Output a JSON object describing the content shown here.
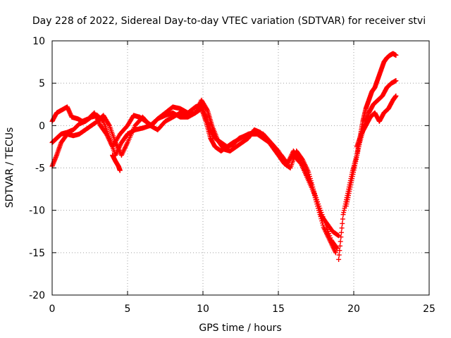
{
  "chart_data": {
    "type": "scatter",
    "title": "Day 228 of 2022, Sidereal Day-to-day VTEC variation (SDTVAR) for receiver stvi",
    "xlabel": "GPS time / hours",
    "ylabel": "SDTVAR / TECUs",
    "xlim": [
      0,
      25
    ],
    "ylim": [
      -20,
      10
    ],
    "xticks": [
      0,
      5,
      10,
      15,
      20,
      25
    ],
    "yticks": [
      -20,
      -15,
      -10,
      -5,
      0,
      5,
      10
    ],
    "xtick_labels": [
      "0",
      "5",
      "10",
      "15",
      "20",
      "25"
    ],
    "ytick_labels": [
      "-20",
      "-15",
      "-10",
      "-5",
      "0",
      "5",
      "10"
    ],
    "grid": true,
    "marker": "plus",
    "color": "#ff0000",
    "series": [
      {
        "x": [
          0.0,
          0.3,
          0.6,
          1.0,
          1.3,
          1.7,
          2.0,
          2.4,
          2.8,
          3.2,
          3.6,
          4.0,
          4.5,
          5.0,
          5.4,
          5.8,
          6.2,
          6.6,
          7.0,
          7.5,
          8.0,
          8.5,
          9.0,
          9.5,
          9.9,
          10.2,
          10.5,
          10.8,
          11.2,
          11.6,
          12.0,
          12.4,
          12.8,
          13.2,
          13.6,
          14.0,
          14.4,
          14.8,
          15.2,
          15.6,
          16.0,
          16.4,
          16.8,
          17.2,
          17.6,
          18.0,
          18.4,
          18.8
        ],
        "y": [
          0.5,
          1.5,
          1.8,
          2.2,
          1.0,
          0.8,
          0.5,
          0.8,
          1.5,
          0.0,
          -1.0,
          -2.5,
          -1.0,
          0.0,
          1.2,
          1.0,
          0.5,
          0.0,
          0.8,
          1.5,
          2.2,
          2.0,
          1.5,
          2.2,
          2.5,
          1.0,
          -0.5,
          -1.5,
          -2.0,
          -2.5,
          -2.2,
          -1.5,
          -1.2,
          -1.0,
          -1.0,
          -1.5,
          -2.0,
          -3.0,
          -3.5,
          -4.5,
          -3.0,
          -4.0,
          -5.5,
          -7.0,
          -9.5,
          -12.0,
          -13.5,
          -15.0
        ]
      },
      {
        "x": [
          0.0,
          0.3,
          0.6,
          1.0,
          1.4,
          1.8,
          2.2,
          2.6,
          3.0,
          3.4,
          3.8,
          4.2,
          4.6,
          5.0,
          5.5,
          6.0,
          6.5,
          7.0,
          7.5,
          8.0,
          8.5,
          9.0,
          9.5,
          9.9,
          10.2,
          10.5,
          10.8,
          11.2,
          11.6,
          12.0,
          12.5,
          13.0,
          13.5,
          14.0,
          14.5,
          15.0,
          15.5,
          16.0,
          16.5,
          17.0,
          17.5,
          18.0,
          18.5,
          18.9
        ],
        "y": [
          -2.0,
          -1.5,
          -1.0,
          -0.8,
          -0.5,
          0.2,
          0.5,
          1.0,
          1.2,
          0.5,
          -1.5,
          -3.5,
          -2.0,
          -1.0,
          -0.5,
          -0.3,
          0.0,
          0.8,
          1.2,
          1.5,
          1.0,
          1.0,
          1.5,
          2.0,
          0.5,
          -1.5,
          -2.5,
          -3.0,
          -2.5,
          -2.0,
          -1.5,
          -1.0,
          -0.8,
          -1.0,
          -2.0,
          -3.0,
          -4.5,
          -3.5,
          -4.5,
          -6.5,
          -8.5,
          -11.0,
          -13.5,
          -14.5
        ]
      },
      {
        "x": [
          0.0,
          0.3,
          0.6,
          1.0,
          1.4,
          1.8,
          2.2,
          2.6,
          3.0,
          3.4,
          3.8,
          4.2,
          4.6,
          5.0,
          5.5,
          6.0,
          6.5,
          7.0,
          7.5,
          8.0,
          8.5,
          9.0,
          9.5,
          9.9,
          10.3,
          10.6,
          11.0,
          11.4,
          11.8,
          12.2,
          12.6,
          13.0,
          13.4,
          13.8,
          14.2,
          14.6,
          15.0,
          15.4,
          15.8,
          16.2,
          16.6,
          17.0,
          17.4,
          17.8,
          18.2,
          18.6,
          19.0
        ],
        "y": [
          -4.8,
          -3.5,
          -2.0,
          -1.0,
          -1.2,
          -1.0,
          -0.5,
          0.0,
          0.5,
          1.2,
          0.0,
          -2.0,
          -3.5,
          -2.0,
          0.0,
          1.0,
          0.0,
          -0.5,
          0.5,
          1.0,
          1.5,
          1.2,
          1.5,
          3.0,
          1.8,
          0.0,
          -1.8,
          -2.8,
          -3.0,
          -2.5,
          -2.0,
          -1.5,
          -0.5,
          -0.8,
          -1.5,
          -2.5,
          -3.5,
          -4.5,
          -5.0,
          -3.0,
          -4.0,
          -5.5,
          -8.0,
          -10.5,
          -11.5,
          -12.5,
          -13.0
        ]
      },
      {
        "x": [
          4.0,
          4.2,
          4.4,
          4.5
        ],
        "y": [
          -3.5,
          -4.2,
          -4.8,
          -5.3
        ]
      },
      {
        "x": [
          19.0,
          19.3,
          19.6,
          19.9,
          20.2,
          20.4,
          20.6,
          20.8,
          21.0,
          21.2,
          21.4,
          21.6,
          21.8,
          22.0,
          22.2,
          22.4,
          22.6,
          22.8
        ],
        "y": [
          -15.8,
          -10.5,
          -8.0,
          -5.5,
          -3.5,
          -1.5,
          0.5,
          2.0,
          3.0,
          4.0,
          4.5,
          5.5,
          6.5,
          7.5,
          8.0,
          8.3,
          8.5,
          8.3
        ]
      },
      {
        "x": [
          19.5,
          19.8,
          20.1,
          20.4,
          20.7,
          21.0,
          21.3,
          21.6,
          21.9,
          22.2,
          22.5,
          22.8
        ],
        "y": [
          -9.5,
          -7.0,
          -4.5,
          -2.0,
          0.0,
          1.5,
          2.5,
          3.0,
          3.5,
          4.5,
          5.0,
          5.3
        ]
      },
      {
        "x": [
          20.2,
          20.5,
          20.8,
          21.1,
          21.4,
          21.7,
          22.0,
          22.3,
          22.6,
          22.8
        ],
        "y": [
          -2.5,
          -1.0,
          0.0,
          1.0,
          1.5,
          0.5,
          1.5,
          2.0,
          3.0,
          3.5
        ]
      }
    ]
  }
}
